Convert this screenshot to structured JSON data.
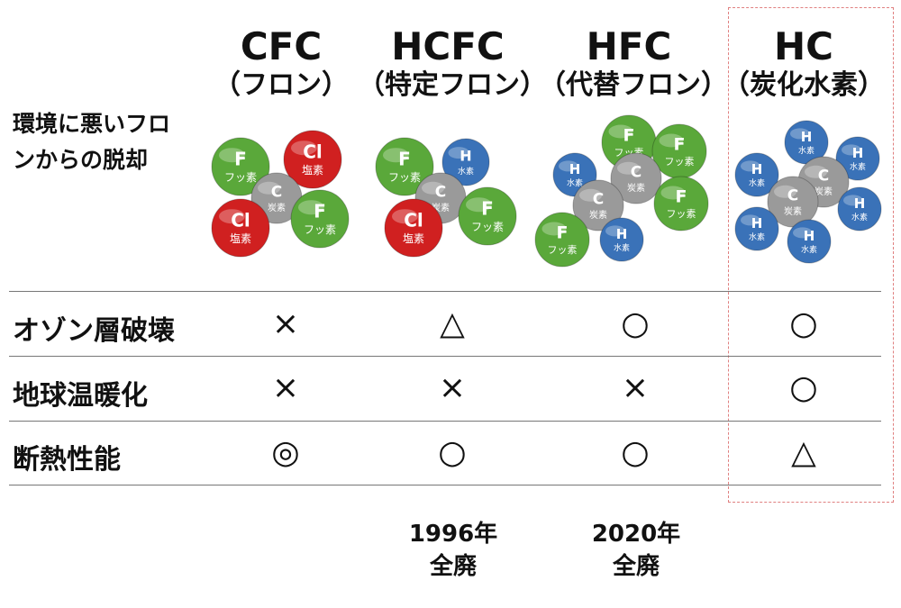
{
  "row_header_top": "環境に悪いフロンからの脱却",
  "columns": [
    {
      "title": "CFC",
      "subtitle": "（フロン）"
    },
    {
      "title": "HCFC",
      "subtitle": "（特定フロン）"
    },
    {
      "title": "HFC",
      "subtitle": "（代替フロン）"
    },
    {
      "title": "HC",
      "subtitle": "（炭化水素）"
    }
  ],
  "rows": [
    {
      "label": "オゾン層破壊",
      "marks": [
        "×",
        "△",
        "○",
        "○"
      ]
    },
    {
      "label": "地球温暖化",
      "marks": [
        "×",
        "×",
        "×",
        "○"
      ]
    },
    {
      "label": "断熱性能",
      "marks": [
        "◎",
        "○",
        "○",
        "△"
      ]
    }
  ],
  "footnotes": [
    {
      "line1": "",
      "line2": ""
    },
    {
      "line1": "1996年",
      "line2": "全廃"
    },
    {
      "line1": "2020年",
      "line2": "全廃"
    },
    {
      "line1": "",
      "line2": ""
    }
  ],
  "atom_labels": {
    "C": {
      "symbol": "C",
      "name": "炭素"
    },
    "F": {
      "symbol": "F",
      "name": "フッ素"
    },
    "Cl": {
      "symbol": "Cl",
      "name": "塩素"
    },
    "H": {
      "symbol": "H",
      "name": "水素"
    }
  },
  "colors": {
    "F": "#5aa83a",
    "Cl": "#d02020",
    "C": "#9a9a9a",
    "H": "#3a72b8",
    "highlight_border": "#e08080"
  }
}
